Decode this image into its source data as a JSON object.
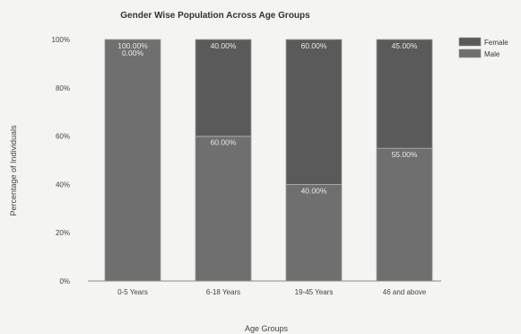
{
  "chart_data": {
    "type": "bar",
    "stacked": true,
    "title": "Gender Wise Population Across Age Groups",
    "xlabel": "Age Groups",
    "ylabel": "Percentage of Individuals",
    "ylim": [
      0,
      100
    ],
    "yticks": [
      "0%",
      "20%",
      "40%",
      "60%",
      "80%",
      "100%"
    ],
    "categories": [
      "0-5 Years",
      "6-18 Years",
      "19-45 Years",
      "46 and above"
    ],
    "series": [
      {
        "name": "Male",
        "values": [
          100,
          60,
          40,
          55
        ],
        "labels": [
          "100.00%",
          "60.00%",
          "40.00%",
          "55.00%"
        ],
        "color": "#6f6f6f"
      },
      {
        "name": "Female",
        "values": [
          0,
          40,
          60,
          45
        ],
        "labels": [
          "0.00%",
          "40.00%",
          "60.00%",
          "45.00%"
        ],
        "color": "#5a5a5a"
      }
    ],
    "legend": "top-right",
    "grid": false
  }
}
